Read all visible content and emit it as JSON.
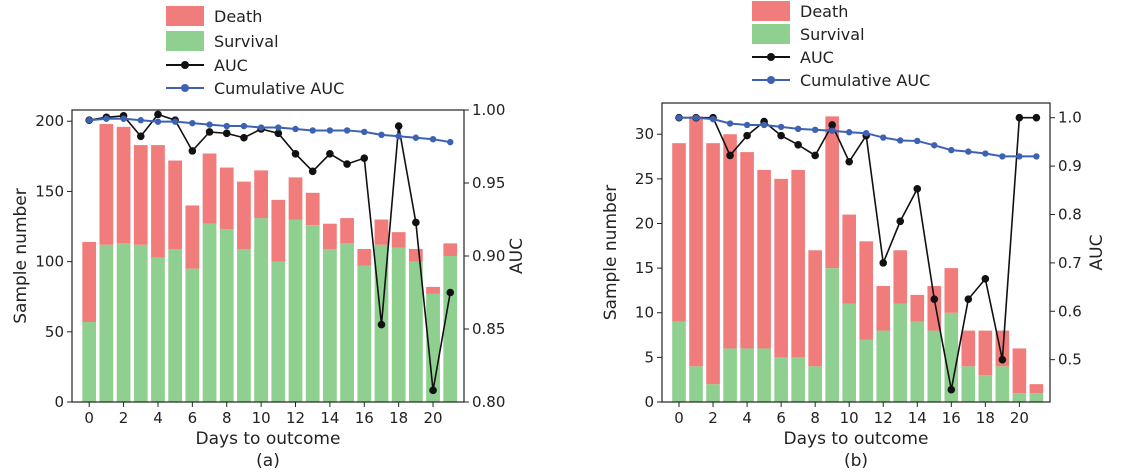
{
  "legend": {
    "death": "Death",
    "survival": "Survival",
    "auc": "AUC",
    "cumulative_auc": "Cumulative AUC"
  },
  "colors": {
    "death": "#f07c7c",
    "survival": "#8fcf8f",
    "auc": "#111111",
    "cumulative_auc": "#3d62b4"
  },
  "chart_data": [
    {
      "type": "bar",
      "caption": "(a)",
      "xlabel": "Days to outcome",
      "ylabel": "Sample number",
      "y2label": "AUC",
      "days": [
        0,
        1,
        2,
        3,
        4,
        5,
        6,
        7,
        8,
        9,
        10,
        11,
        12,
        13,
        14,
        15,
        16,
        17,
        18,
        19,
        20,
        21
      ],
      "xticks": [
        0,
        2,
        4,
        6,
        8,
        10,
        12,
        14,
        16,
        18,
        20
      ],
      "yticks": [
        0,
        50,
        100,
        150,
        200
      ],
      "y2ticks": [
        0.8,
        0.85,
        0.9,
        0.95,
        1.0
      ],
      "y2tick_labels": [
        "0.80",
        "0.85",
        "0.90",
        "0.95",
        "1.00"
      ],
      "ylim": [
        0,
        208
      ],
      "y2lim": [
        0.8,
        1.0
      ],
      "survival": [
        57,
        112,
        113,
        112,
        103,
        109,
        95,
        127,
        123,
        109,
        131,
        100,
        130,
        126,
        109,
        113,
        97,
        112,
        110,
        100,
        77,
        104
      ],
      "death": [
        57,
        86,
        83,
        71,
        80,
        63,
        45,
        50,
        44,
        48,
        34,
        44,
        30,
        23,
        18,
        18,
        12,
        18,
        11,
        9,
        5,
        9
      ],
      "auc": [
        0.993,
        0.995,
        0.996,
        0.982,
        0.997,
        0.993,
        0.972,
        0.985,
        0.984,
        0.981,
        0.987,
        0.984,
        0.97,
        0.958,
        0.97,
        0.963,
        0.967,
        0.853,
        0.989,
        0.923,
        0.808,
        0.875
      ],
      "cumulative_auc": [
        0.993,
        0.994,
        0.994,
        0.993,
        0.992,
        0.992,
        0.991,
        0.99,
        0.989,
        0.989,
        0.988,
        0.988,
        0.987,
        0.986,
        0.986,
        0.986,
        0.985,
        0.983,
        0.982,
        0.981,
        0.98,
        0.978
      ]
    },
    {
      "type": "bar",
      "caption": "(b)",
      "xlabel": "Days to outcome",
      "ylabel": "Sample number",
      "y2label": "AUC",
      "days": [
        0,
        1,
        2,
        3,
        4,
        5,
        6,
        7,
        8,
        9,
        10,
        11,
        12,
        13,
        14,
        15,
        16,
        17,
        18,
        19,
        20,
        21
      ],
      "xticks": [
        0,
        2,
        4,
        6,
        8,
        10,
        12,
        14,
        16,
        18,
        20
      ],
      "yticks": [
        0,
        5,
        10,
        15,
        20,
        25,
        30
      ],
      "y2ticks": [
        0.5,
        0.6,
        0.7,
        0.8,
        0.9,
        1.0
      ],
      "y2tick_labels": [
        "0.5",
        "0.6",
        "0.7",
        "0.8",
        "0.9",
        "1.0"
      ],
      "ylim": [
        0,
        33.5
      ],
      "y2lim": [
        0.4125,
        1.0304
      ],
      "survival": [
        9,
        4,
        2,
        6,
        6,
        6,
        5,
        5,
        4,
        15,
        11,
        7,
        8,
        11,
        9,
        8,
        10,
        4,
        3,
        4,
        1,
        1
      ],
      "death": [
        20,
        28,
        27,
        24,
        22,
        20,
        20,
        21,
        13,
        17,
        10,
        11,
        5,
        6,
        3,
        5,
        5,
        4,
        5,
        4,
        5,
        1
      ],
      "auc": [
        1.0,
        1.0,
        1.0,
        0.922,
        0.963,
        0.992,
        0.963,
        0.944,
        0.922,
        0.985,
        0.909,
        0.963,
        0.7,
        0.786,
        0.853,
        0.625,
        0.438,
        0.625,
        0.667,
        0.5,
        1.0,
        1.0
      ],
      "cumulative_auc": [
        1.0,
        1.0,
        0.997,
        0.988,
        0.985,
        0.985,
        0.981,
        0.977,
        0.975,
        0.973,
        0.97,
        0.968,
        0.959,
        0.953,
        0.952,
        0.943,
        0.933,
        0.93,
        0.926,
        0.92,
        0.92,
        0.92
      ]
    }
  ]
}
